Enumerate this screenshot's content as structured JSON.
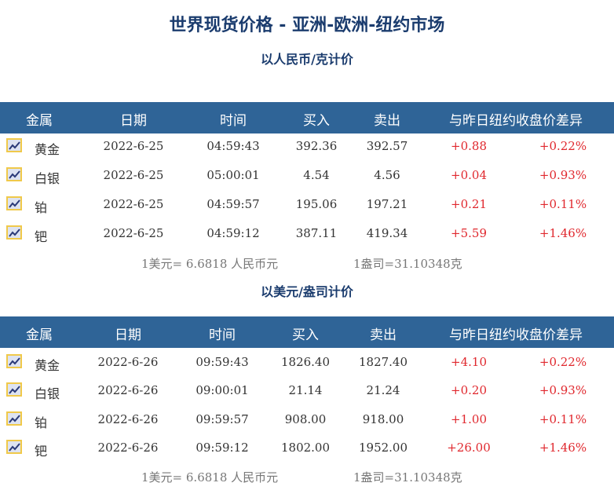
{
  "title": "世界现货价格 - 亚洲-欧洲-纽约市场",
  "headers": [
    "金属",
    "日期",
    "时间",
    "买入",
    "卖出",
    "与昨日纽约收盘价差异"
  ],
  "colors": {
    "header_bg": "#2f6497",
    "title": "#1b3c6e",
    "positive": "#e0282e"
  },
  "row_icon": "chart-line-icon",
  "tables": [
    {
      "subtitle": "以人民币/克计价",
      "rows": [
        [
          "黄金",
          "2022-6-25",
          "04:59:43",
          "392.36",
          "392.57",
          "+0.88",
          "+0.22%"
        ],
        [
          "白银",
          "2022-6-25",
          "05:00:01",
          "4.54",
          "4.56",
          "+0.04",
          "+0.93%"
        ],
        [
          "铂",
          "2022-6-25",
          "04:59:57",
          "195.06",
          "197.21",
          "+0.21",
          "+0.11%"
        ],
        [
          "钯",
          "2022-6-25",
          "04:59:12",
          "387.11",
          "419.34",
          "+5.59",
          "+1.46%"
        ]
      ],
      "note": {
        "rate": "1美元= 6.6818 人民币元",
        "ounce": "1盎司=31.10348克"
      }
    },
    {
      "subtitle": "以美元/盎司计价",
      "rows": [
        [
          "黄金",
          "2022-6-26",
          "09:59:43",
          "1826.40",
          "1827.40",
          "+4.10",
          "+0.22%"
        ],
        [
          "白银",
          "2022-6-26",
          "09:00:01",
          "21.14",
          "21.24",
          "+0.20",
          "+0.93%"
        ],
        [
          "铂",
          "2022-6-26",
          "09:59:57",
          "908.00",
          "918.00",
          "+1.00",
          "+0.11%"
        ],
        [
          "钯",
          "2022-6-26",
          "09:59:12",
          "1802.00",
          "1952.00",
          "+26.00",
          "+1.46%"
        ]
      ],
      "note": {
        "rate": "1美元= 6.6818 人民币元",
        "ounce": "1盎司=31.10348克"
      }
    }
  ]
}
